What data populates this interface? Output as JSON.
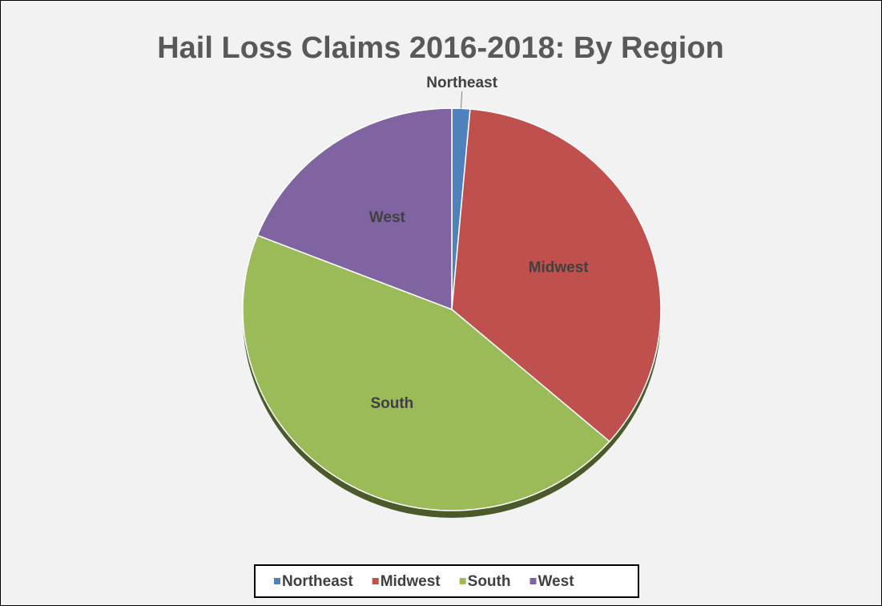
{
  "chart_data": {
    "type": "pie",
    "title": "Hail Loss Claims 2016-2018: By Region",
    "categories": [
      "Northeast",
      "Midwest",
      "South",
      "West"
    ],
    "values": [
      1.4,
      35.0,
      44.6,
      19.0
    ],
    "colors": [
      "#4f81bd",
      "#c0504d",
      "#9bbb59",
      "#8064a2"
    ],
    "legend": "bottom"
  }
}
